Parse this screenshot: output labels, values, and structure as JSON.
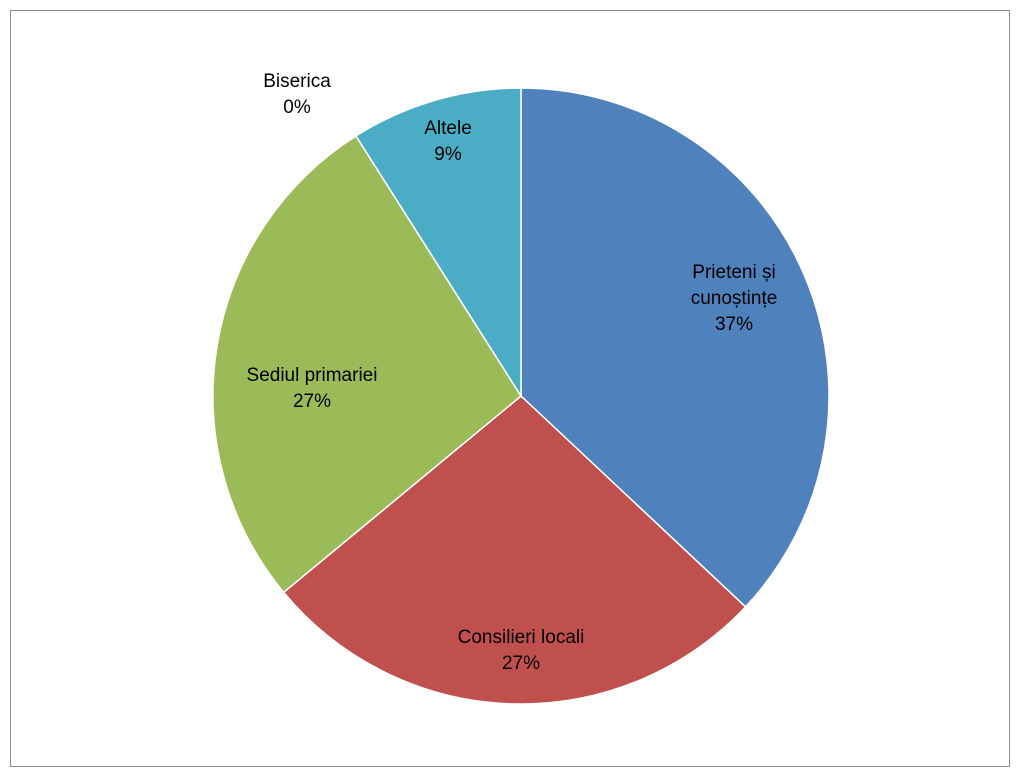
{
  "chart_data": {
    "type": "pie",
    "title": "",
    "slices": [
      {
        "name": "Prieteni și cunoștințe",
        "label_lines": [
          "Prieteni și",
          "cunoștințe"
        ],
        "value": 37,
        "percent_label": "37%",
        "color": "#4F81BD"
      },
      {
        "name": "Consilieri locali",
        "label_lines": [
          "Consilieri locali"
        ],
        "value": 27,
        "percent_label": "27%",
        "color": "#C0504D"
      },
      {
        "name": "Sediul primariei",
        "label_lines": [
          "Sediul primariei"
        ],
        "value": 27,
        "percent_label": "27%",
        "color": "#9BBB59"
      },
      {
        "name": "Biserica",
        "label_lines": [
          "Biserica"
        ],
        "value": 0,
        "percent_label": "0%",
        "color": "#8064A2"
      },
      {
        "name": "Altele",
        "label_lines": [
          "Altele"
        ],
        "value": 9,
        "percent_label": "9%",
        "color": "#4BACC6"
      }
    ],
    "legend": "none",
    "start_angle": "12 o'clock",
    "direction": "clockwise"
  }
}
